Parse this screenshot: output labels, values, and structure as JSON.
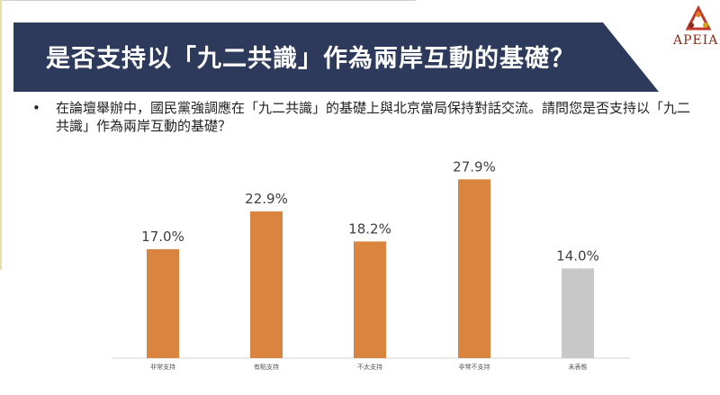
{
  "slide": {
    "title": "是否支持以「九二共識」作為兩岸互動的基礎？",
    "logo_text": "APEIA",
    "question_bullet": "•",
    "question": "在論壇舉辦中，國民黨強調應在「九二共識」的基礎上與北京當局保持對話交流。請問您是否支持以「九二共識」作為兩岸互動的基礎？"
  },
  "colors": {
    "banner": "#2d3a5c",
    "bar_main": "#d9843f",
    "bar_neutral": "#c8c8c8",
    "axis": "#d6d6d6",
    "label": "#404040"
  },
  "chart_data": {
    "type": "bar",
    "categories": [
      "非常支持",
      "有點支持",
      "不太支持",
      "非常不支持",
      "未表態"
    ],
    "values": [
      17.0,
      22.9,
      18.2,
      27.9,
      14.0
    ],
    "value_labels": [
      "17.0%",
      "22.9%",
      "18.2%",
      "27.9%",
      "14.0%"
    ],
    "bar_colors": [
      "#d9843f",
      "#d9843f",
      "#d9843f",
      "#d9843f",
      "#c8c8c8"
    ],
    "title": "",
    "xlabel": "",
    "ylabel": "",
    "ylim": [
      0,
      30
    ],
    "grid": false,
    "legend": "none"
  }
}
